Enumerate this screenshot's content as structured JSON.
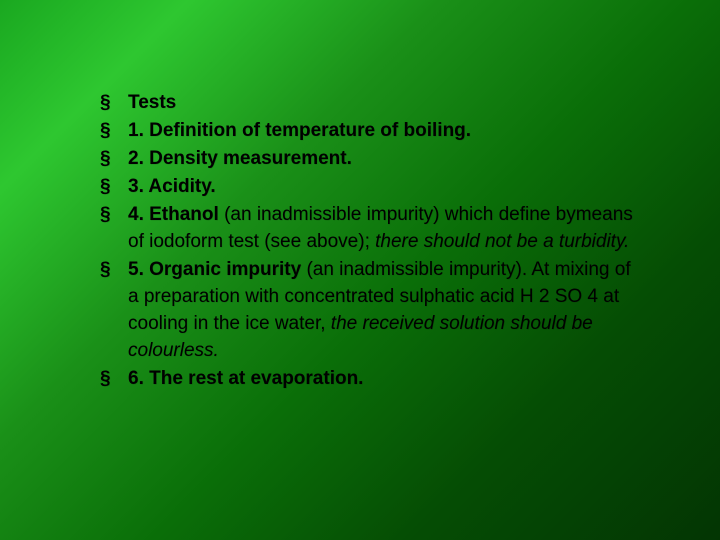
{
  "slide": {
    "background_gradient": [
      "#1aa820",
      "#2ec730",
      "#1a9018",
      "#0a6e08",
      "#054d04",
      "#033503"
    ],
    "text_color": "#000000",
    "bullet_char": "§",
    "font_family": "Arial",
    "font_size_pt": 19,
    "line_height": 1.42,
    "items": [
      {
        "runs": [
          {
            "text": "Tests",
            "bold": true
          }
        ]
      },
      {
        "runs": [
          {
            "text": "1. Definition of temperature of boiling.",
            "bold": true
          }
        ]
      },
      {
        "runs": [
          {
            "text": "2. Density measurement.",
            "bold": true
          }
        ]
      },
      {
        "runs": [
          {
            "text": "3. Acidity.",
            "bold": true
          }
        ]
      },
      {
        "runs": [
          {
            "text": "4. Ethanol ",
            "bold": true
          },
          {
            "text": "(an inadmissible impurity) which define bymeans of iodoform test (see above); ",
            "bold": false
          },
          {
            "text": "there should not be a turbidity.",
            "bold": false,
            "italic": true
          }
        ]
      },
      {
        "runs": [
          {
            "text": "5. Organic impurity ",
            "bold": true
          },
          {
            "text": "(an inadmissible impurity). At mixing of a preparation with concentrated sulphatic acid H 2 SO 4 at cooling in the ice water, ",
            "bold": false
          },
          {
            "text": "the received solution should be colourless.",
            "bold": false,
            "italic": true
          }
        ]
      },
      {
        "runs": [
          {
            "text": "6. The rest at evaporation.",
            "bold": true
          }
        ]
      }
    ]
  }
}
